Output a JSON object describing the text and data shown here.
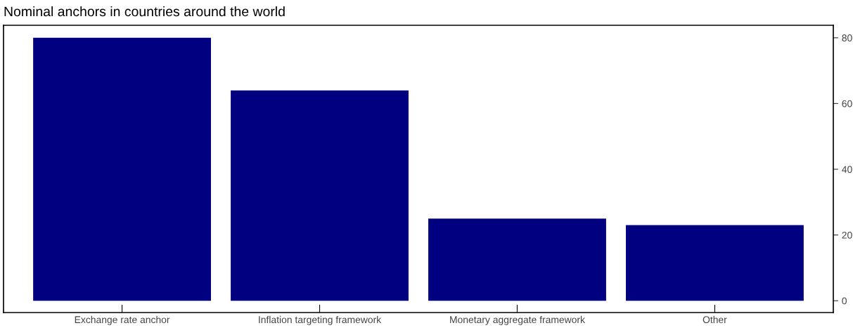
{
  "chart_data": {
    "type": "bar",
    "title": "Nominal anchors in countries around the world",
    "categories": [
      "Exchange rate anchor",
      "Inflation targeting framework",
      "Monetary aggregate framework",
      "Other"
    ],
    "values": [
      80,
      64,
      25,
      23
    ],
    "color": "#000080",
    "ylim": [
      -3.6,
      83.8
    ],
    "yticks": [
      0,
      20,
      40,
      60,
      80
    ],
    "grid": false,
    "legend": false
  }
}
